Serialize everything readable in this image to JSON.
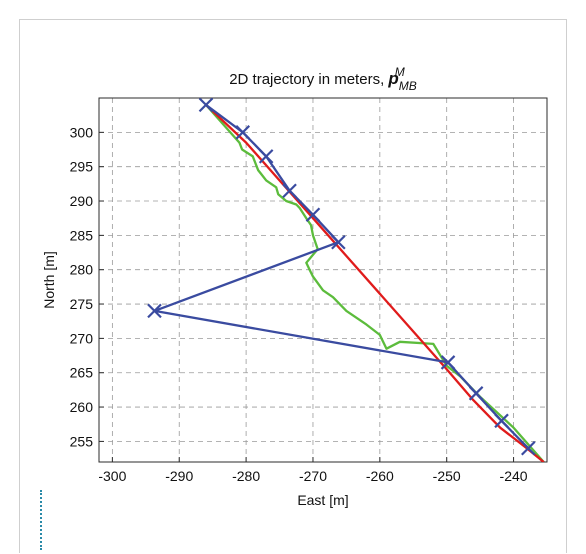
{
  "chart_data": {
    "type": "line",
    "title_main": "2D trajectory in meters, ",
    "title_symbol": "p",
    "title_sup": "M",
    "title_sub": "MB",
    "xlabel": "East [m]",
    "ylabel": "North [m]",
    "xlim": [
      -302,
      -235
    ],
    "ylim": [
      252,
      305
    ],
    "grid": true,
    "xticks": [
      -300,
      -290,
      -280,
      -270,
      -260,
      -250,
      -240
    ],
    "yticks": [
      255,
      260,
      265,
      270,
      275,
      280,
      285,
      290,
      295,
      300
    ],
    "colors": {
      "blue": "#3a4ba0",
      "red": "#e01b1b",
      "green": "#5cbc3c",
      "grid": "#9a9a9a"
    },
    "series": [
      {
        "color": "#5cbc3c",
        "x": [
          -286,
          -281,
          -280.6,
          -279,
          -278.2,
          -277.8,
          -277,
          -275.5,
          -275.2,
          -274,
          -272.5,
          -272,
          -271,
          -270.3,
          -270,
          -269.3,
          -271,
          -270.5,
          -270,
          -268.5,
          -267,
          -265,
          -262,
          -260,
          -259,
          -257,
          -252,
          -250,
          -248,
          -245,
          -240,
          -235.5
        ],
        "y": [
          304,
          298.5,
          297.5,
          296.5,
          294.5,
          294,
          293,
          292,
          291,
          290,
          289.5,
          289,
          287.5,
          286.5,
          285,
          283,
          281,
          280,
          279,
          277,
          276,
          274,
          272,
          270.5,
          268.5,
          269.5,
          269.2,
          266,
          264.5,
          261.5,
          257,
          252
        ]
      },
      {
        "color": "#e01b1b",
        "x": [
          -286,
          -280,
          -275,
          -270,
          -265,
          -260,
          -255,
          -250,
          -246,
          -242,
          -238,
          -235.5
        ],
        "y": [
          304,
          298.5,
          293,
          287.5,
          282,
          276.5,
          271,
          265.5,
          261,
          257,
          254,
          252
        ]
      },
      {
        "color": "#3a4ba0",
        "x": [
          -286,
          -280.5,
          -277,
          -273.5,
          -270,
          -266.2,
          -293.7,
          -249.8,
          -245.6,
          -241.8,
          -237.8
        ],
        "y": [
          304,
          300,
          296.5,
          291.5,
          288,
          284,
          274,
          266.5,
          262,
          258,
          254
        ]
      }
    ]
  }
}
